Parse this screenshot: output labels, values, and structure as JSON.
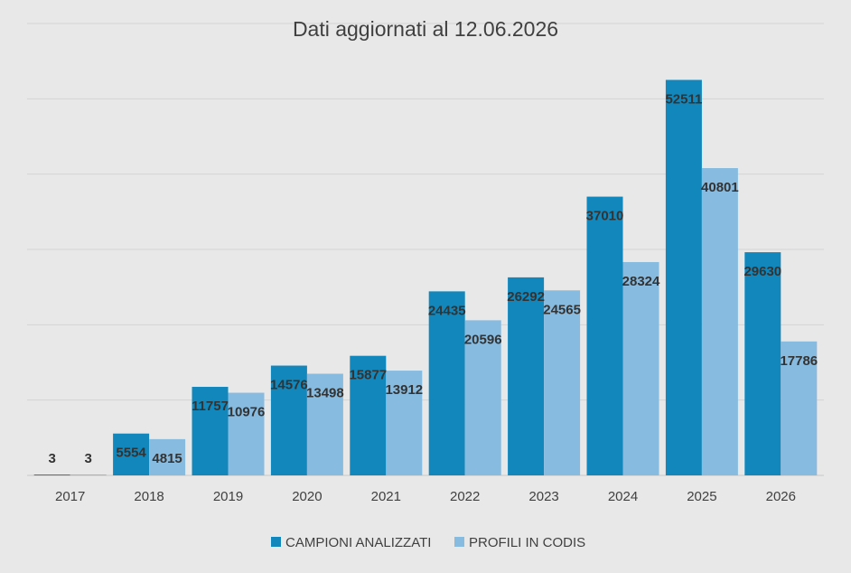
{
  "chart_data": {
    "type": "bar",
    "title": "Dati aggiornati al 12.06.2026",
    "categories": [
      "2017",
      "2018",
      "2019",
      "2020",
      "2021",
      "2022",
      "2023",
      "2024",
      "2025",
      "2026"
    ],
    "series": [
      {
        "name": "CAMPIONI ANALIZZATI",
        "color": "#1287bb",
        "values": [
          3,
          5554,
          11757,
          14576,
          15877,
          24435,
          26292,
          37010,
          52511,
          29630
        ]
      },
      {
        "name": "PROFILI IN CODIS",
        "color": "#88bbe0",
        "values": [
          3,
          4815,
          10976,
          13498,
          13912,
          20596,
          24565,
          28324,
          40801,
          17786
        ]
      }
    ],
    "ylim": [
      0,
      60000
    ],
    "yticks_labeled": false,
    "grid": true,
    "legend": "bottom-center",
    "data_labels": true
  }
}
